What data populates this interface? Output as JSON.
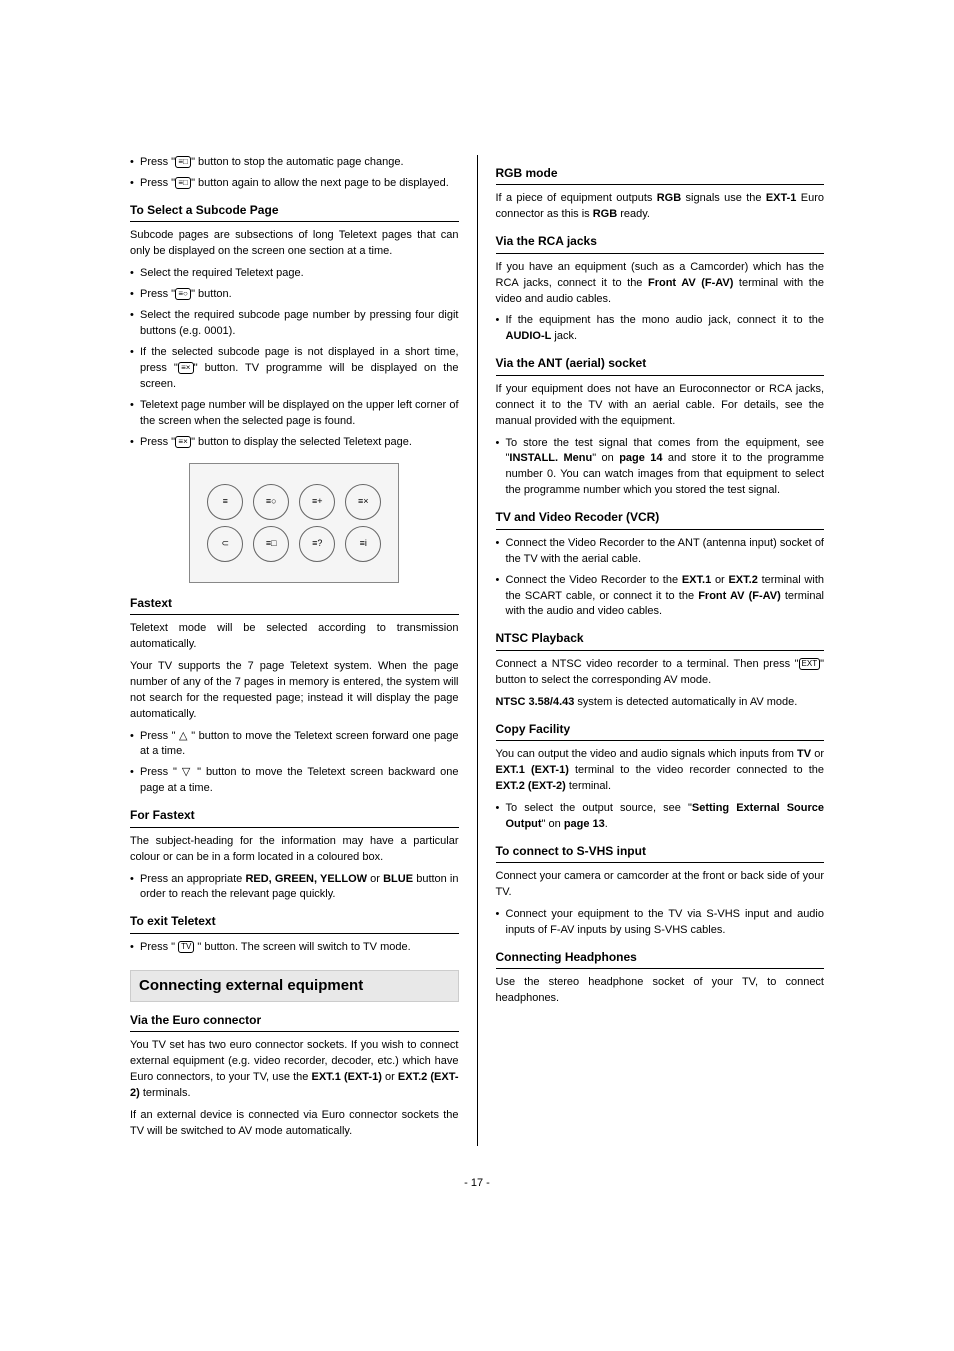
{
  "left": {
    "intro_bullets": [
      {
        "pre": "Press \"",
        "icon": "≡&#9633;",
        "post": "\" button to stop the automatic page change."
      },
      {
        "pre": "Press \"",
        "icon": "≡&#9633;",
        "post": "\" button again to allow the next page to be displayed."
      }
    ],
    "subcode": {
      "title": "To Select a Subcode Page",
      "intro": "Subcode pages are subsections of long Teletext pages that can only be displayed on the screen one section at a time.",
      "bullets": [
        {
          "pre": "Select the required Teletext page.",
          "icon": "",
          "post": ""
        },
        {
          "pre": "Press \"",
          "icon": "≡&#9675;",
          "post": "\" button."
        },
        {
          "pre": "Select the required subcode page number by pressing four digit buttons (e.g. 0001).",
          "icon": "",
          "post": ""
        },
        {
          "pre": "If the selected subcode page is not displayed in a short time, press \"",
          "icon": "≡×",
          "post": "\" button. TV programme will be displayed on the screen."
        },
        {
          "pre": "Teletext page number will be displayed on the upper left corner of the screen when the selected page is found.",
          "icon": "",
          "post": ""
        },
        {
          "pre": "Press \"",
          "icon": "≡×",
          "post": "\" button to display the selected Teletext page."
        }
      ]
    },
    "fastext": {
      "title": "Fastext",
      "p1": "Teletext mode will be selected according to transmission automatically.",
      "p2": "Your TV supports the 7 page Teletext system. When the page number of any of the 7 pages in memory is entered, the system will not search for the requested page; instead it will display the page automatically.",
      "bullets": [
        "Press \" △ \" button  to move the Teletext screen forward one page at a time.",
        "Press \" ▽ \" button  to move the Teletext screen backward one page at a time."
      ]
    },
    "for_fastext": {
      "title": "For Fastext",
      "p1": "The subject-heading for the information may have a particular colour or can be in a form located in a coloured box.",
      "bullet_pre": "Press an appropriate ",
      "bullet_bold": "RED, GREEN, YELLOW",
      "bullet_mid": " or ",
      "bullet_bold2": "BLUE",
      "bullet_post": " button in order to reach the relevant page quickly."
    },
    "exit": {
      "title": "To exit Teletext",
      "bullet_pre": "Press \" ",
      "bullet_icon": "TV",
      "bullet_post": " \" button. The screen will switch to TV mode."
    },
    "connecting": {
      "title": "Connecting external equipment"
    },
    "euro": {
      "title": "Via the Euro connector",
      "p1_pre": "You TV set has two euro connector sockets. If you wish to connect external equipment (e.g. video recorder, decoder, etc.) which have Euro connectors, to your TV, use the ",
      "p1_b1": "EXT.1 (EXT-1)",
      "p1_mid": " or ",
      "p1_b2": "EXT.2 (EXT-2)",
      "p1_post": " terminals.",
      "p2": "If an external device is connected via Euro connector sockets the TV will be switched to AV mode automatically."
    }
  },
  "right": {
    "rgb": {
      "title": "RGB mode",
      "p_pre": "If a piece of equipment outputs ",
      "p_b1": "RGB",
      "p_mid": " signals use the ",
      "p_b2": "EXT-1",
      "p_mid2": " Euro connector as this is ",
      "p_b3": "RGB",
      "p_post": " ready."
    },
    "rca": {
      "title": "Via the RCA jacks",
      "p_pre": "If you have an equipment (such as a Camcorder) which has the RCA jacks, connect it to the ",
      "p_b": "Front AV (F-AV)",
      "p_post": " terminal with the video and audio cables.",
      "bullet_pre": "If the equipment has the mono audio jack, connect it to the ",
      "bullet_b": "AUDIO-L",
      "bullet_post": " jack."
    },
    "ant": {
      "title": "Via the ANT (aerial) socket",
      "p1": "If your equipment does not have an Euroconnector or RCA jacks, connect it to the TV with an aerial cable. For details, see the manual provided with the equipment.",
      "bullet_pre": "To store the test signal that comes from the equipment, see \"",
      "bullet_b1": "INSTALL. Menu",
      "bullet_mid": "\" on ",
      "bullet_b2": "page 14",
      "bullet_post": " and store it to the programme number 0. You can watch images from that equipment to select the programme number which you stored the test signal."
    },
    "vcr": {
      "title": "TV and Video Recoder (VCR)",
      "b1": "Connect the Video Recorder to the ANT (antenna input) socket of the TV with the aerial cable.",
      "b2_pre": "Connect the Video Recorder to the ",
      "b2_bold1": "EXT.1",
      "b2_mid1": " or ",
      "b2_bold2": "EXT.2",
      "b2_mid2": " terminal with the SCART cable, or connect it to the ",
      "b2_bold3": "Front AV (F-AV)",
      "b2_post": " terminal with the audio and video cables."
    },
    "ntsc": {
      "title": "NTSC Playback",
      "p1_pre": "Connect a NTSC video recorder to a terminal. Then press \"",
      "p1_icon": "EXT",
      "p1_post": "\" button to select the corresponding AV mode.",
      "p2_b": "NTSC 3.58/4.43",
      "p2_post": " system is detected automatically in AV mode."
    },
    "copy": {
      "title": "Copy Facility",
      "p_pre": "You can output the video and audio signals which inputs from ",
      "p_b1": "TV",
      "p_mid1": " or ",
      "p_b2": "EXT.1 (EXT-1)",
      "p_mid2": " terminal to the video recorder connected to the ",
      "p_b3": "EXT.2 (EXT-2)",
      "p_post": " terminal.",
      "bullet_pre": "To select the output source, see \"",
      "bullet_b": "Setting External Source Output",
      "bullet_mid": "\" on ",
      "bullet_b2": "page 13",
      "bullet_post": "."
    },
    "svhs": {
      "title": "To connect to S-VHS input",
      "p1": "Connect your camera or camcorder at the front or back side of your TV.",
      "b1": "Connect your equipment to the TV via S-VHS input and audio inputs of F-AV inputs by using S-VHS cables."
    },
    "headphones": {
      "title": "Connecting Headphones",
      "p": "Use the stereo headphone socket of your TV, to connect headphones."
    }
  },
  "page_number": "- 17 -",
  "remote_icons": {
    "row1": [
      "≡",
      "≡○",
      "≡+",
      "≡×"
    ],
    "row2": [
      "⊂",
      "≡□",
      "≡?",
      "≡i"
    ]
  }
}
